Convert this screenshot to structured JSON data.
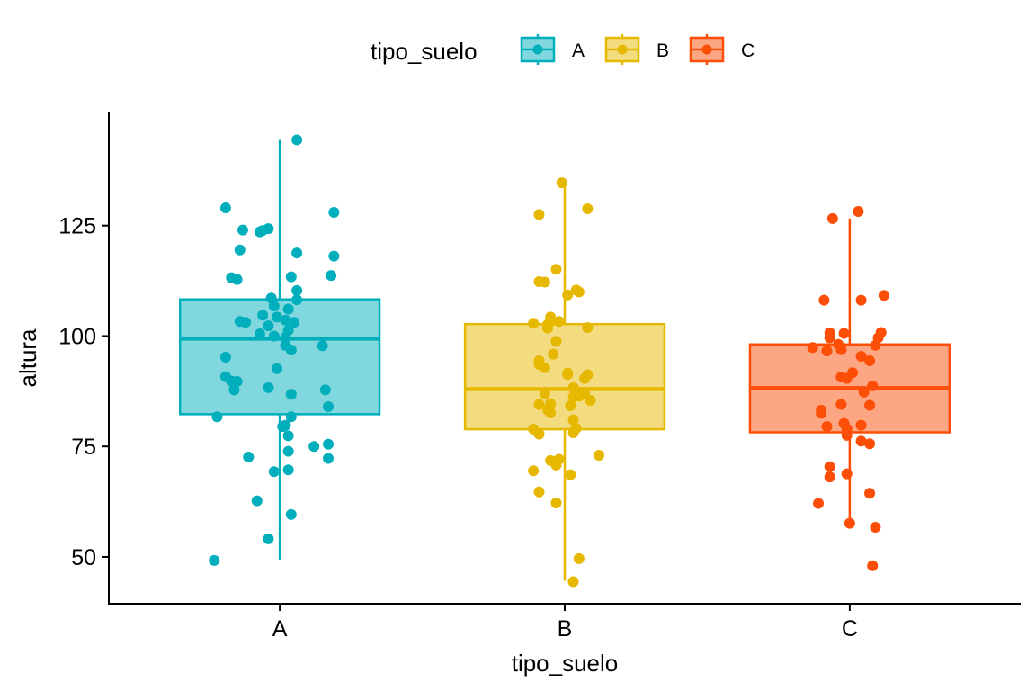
{
  "chart_data": {
    "type": "boxplot",
    "xlabel": "tipo_suelo",
    "ylabel": "altura",
    "ylim": [
      39.4,
      150.6
    ],
    "yticks": [
      50,
      75,
      100,
      125
    ],
    "categories": [
      "A",
      "B",
      "C"
    ],
    "legend": {
      "title": "tipo_suelo",
      "position": "top",
      "entries": [
        {
          "label": "A",
          "color": "#00AFBB"
        },
        {
          "label": "B",
          "color": "#E7B800"
        },
        {
          "label": "C",
          "color": "#FC4E07"
        }
      ]
    },
    "series": [
      {
        "category": "A",
        "color": "#00AFBB",
        "fill": "#80D7DD",
        "box": {
          "whisker_low": 49.4,
          "q1": 82.3,
          "median": 99.4,
          "q3": 108.3,
          "whisker_high": 144.4
        },
        "points": [
          {
            "x": -0.19,
            "y": 129.0
          },
          {
            "x": 0.19,
            "y": 128.0
          },
          {
            "x": -0.13,
            "y": 124.0
          },
          {
            "x": -0.04,
            "y": 124.3
          },
          {
            "x": -0.06,
            "y": 123.9
          },
          {
            "x": -0.07,
            "y": 123.6
          },
          {
            "x": -0.14,
            "y": 119.5
          },
          {
            "x": 0.06,
            "y": 118.8
          },
          {
            "x": 0.19,
            "y": 118.1
          },
          {
            "x": -0.17,
            "y": 113.2
          },
          {
            "x": 0.04,
            "y": 113.4
          },
          {
            "x": 0.18,
            "y": 113.7
          },
          {
            "x": -0.15,
            "y": 112.8
          },
          {
            "x": 0.06,
            "y": 110.3
          },
          {
            "x": -0.03,
            "y": 108.6
          },
          {
            "x": 0.06,
            "y": 108.2
          },
          {
            "x": -0.02,
            "y": 106.8
          },
          {
            "x": 0.03,
            "y": 106.1
          },
          {
            "x": -0.06,
            "y": 104.7
          },
          {
            "x": -0.01,
            "y": 104.3
          },
          {
            "x": 0.02,
            "y": 103.6
          },
          {
            "x": -0.14,
            "y": 103.3
          },
          {
            "x": -0.12,
            "y": 103.1
          },
          {
            "x": 0.05,
            "y": 103.1
          },
          {
            "x": -0.04,
            "y": 102.3
          },
          {
            "x": 0.03,
            "y": 101.3
          },
          {
            "x": -0.07,
            "y": 100.5
          },
          {
            "x": -0.02,
            "y": 100.0
          },
          {
            "x": 0.02,
            "y": 99.7
          },
          {
            "x": 0.02,
            "y": 97.9
          },
          {
            "x": 0.15,
            "y": 97.8
          },
          {
            "x": 0.04,
            "y": 96.8
          },
          {
            "x": -0.19,
            "y": 95.2
          },
          {
            "x": -0.01,
            "y": 92.6
          },
          {
            "x": -0.19,
            "y": 90.8
          },
          {
            "x": -0.17,
            "y": 89.8
          },
          {
            "x": -0.15,
            "y": 89.7
          },
          {
            "x": -0.04,
            "y": 88.3
          },
          {
            "x": -0.16,
            "y": 87.8
          },
          {
            "x": 0.16,
            "y": 87.8
          },
          {
            "x": 0.04,
            "y": 86.8
          },
          {
            "x": 0.17,
            "y": 84.0
          },
          {
            "x": -0.22,
            "y": 81.7
          },
          {
            "x": 0.04,
            "y": 81.7
          },
          {
            "x": 0.02,
            "y": 79.8
          },
          {
            "x": 0.01,
            "y": 79.5
          },
          {
            "x": 0.03,
            "y": 77.4
          },
          {
            "x": 0.17,
            "y": 75.5
          },
          {
            "x": 0.12,
            "y": 75.0
          },
          {
            "x": 0.03,
            "y": 73.9
          },
          {
            "x": -0.11,
            "y": 72.6
          },
          {
            "x": 0.17,
            "y": 72.3
          },
          {
            "x": 0.03,
            "y": 69.7
          },
          {
            "x": -0.02,
            "y": 69.3
          },
          {
            "x": -0.08,
            "y": 62.7
          },
          {
            "x": 0.04,
            "y": 59.6
          },
          {
            "x": -0.04,
            "y": 54.1
          },
          {
            "x": -0.23,
            "y": 49.2
          },
          {
            "x": 0.06,
            "y": 144.4
          }
        ]
      },
      {
        "category": "B",
        "color": "#E7B800",
        "fill": "#F3DB7F",
        "box": {
          "whisker_low": 44.6,
          "q1": 78.9,
          "median": 88.0,
          "q3": 102.7,
          "whisker_high": 134.4
        },
        "points": [
          {
            "x": -0.01,
            "y": 134.7
          },
          {
            "x": 0.08,
            "y": 128.8
          },
          {
            "x": -0.09,
            "y": 127.5
          },
          {
            "x": -0.03,
            "y": 115.1
          },
          {
            "x": -0.09,
            "y": 112.3
          },
          {
            "x": -0.07,
            "y": 112.2
          },
          {
            "x": 0.04,
            "y": 110.4
          },
          {
            "x": 0.05,
            "y": 110.0
          },
          {
            "x": 0.01,
            "y": 109.3
          },
          {
            "x": -0.05,
            "y": 104.3
          },
          {
            "x": -0.05,
            "y": 103.3
          },
          {
            "x": -0.02,
            "y": 103.3
          },
          {
            "x": -0.11,
            "y": 102.9
          },
          {
            "x": -0.06,
            "y": 102.6
          },
          {
            "x": 0.08,
            "y": 101.9
          },
          {
            "x": -0.06,
            "y": 101.8
          },
          {
            "x": -0.03,
            "y": 98.8
          },
          {
            "x": -0.04,
            "y": 95.9
          },
          {
            "x": -0.09,
            "y": 94.4
          },
          {
            "x": -0.09,
            "y": 93.6
          },
          {
            "x": -0.07,
            "y": 92.8
          },
          {
            "x": 0.01,
            "y": 91.6
          },
          {
            "x": 0.01,
            "y": 91.3
          },
          {
            "x": 0.08,
            "y": 91.2
          },
          {
            "x": 0.07,
            "y": 90.4
          },
          {
            "x": 0.03,
            "y": 88.3
          },
          {
            "x": 0.04,
            "y": 87.5
          },
          {
            "x": 0.07,
            "y": 87.0
          },
          {
            "x": -0.07,
            "y": 87.0
          },
          {
            "x": 0.04,
            "y": 86.6
          },
          {
            "x": 0.03,
            "y": 86.2
          },
          {
            "x": 0.05,
            "y": 86.4
          },
          {
            "x": 0.09,
            "y": 85.4
          },
          {
            "x": -0.09,
            "y": 84.5
          },
          {
            "x": -0.05,
            "y": 84.7
          },
          {
            "x": 0.02,
            "y": 84.2
          },
          {
            "x": -0.06,
            "y": 83.3
          },
          {
            "x": -0.05,
            "y": 82.6
          },
          {
            "x": 0.03,
            "y": 81.0
          },
          {
            "x": 0.04,
            "y": 79.1
          },
          {
            "x": -0.11,
            "y": 78.9
          },
          {
            "x": 0.03,
            "y": 78.1
          },
          {
            "x": -0.09,
            "y": 77.8
          },
          {
            "x": 0.12,
            "y": 73.0
          },
          {
            "x": -0.02,
            "y": 72.1
          },
          {
            "x": -0.05,
            "y": 71.8
          },
          {
            "x": -0.03,
            "y": 70.8
          },
          {
            "x": -0.11,
            "y": 69.5
          },
          {
            "x": 0.02,
            "y": 68.6
          },
          {
            "x": -0.09,
            "y": 64.7
          },
          {
            "x": -0.03,
            "y": 62.2
          },
          {
            "x": 0.05,
            "y": 49.6
          },
          {
            "x": 0.03,
            "y": 44.4
          }
        ]
      },
      {
        "category": "C",
        "color": "#FC4E07",
        "fill": "#FDA683",
        "box": {
          "whisker_low": 57.7,
          "q1": 78.2,
          "median": 88.2,
          "q3": 98.1,
          "whisker_high": 126.6
        },
        "points": [
          {
            "x": 0.03,
            "y": 128.2
          },
          {
            "x": -0.06,
            "y": 126.6
          },
          {
            "x": 0.12,
            "y": 109.2
          },
          {
            "x": -0.09,
            "y": 108.1
          },
          {
            "x": 0.04,
            "y": 108.1
          },
          {
            "x": -0.07,
            "y": 100.7
          },
          {
            "x": -0.02,
            "y": 100.6
          },
          {
            "x": 0.11,
            "y": 100.8
          },
          {
            "x": -0.07,
            "y": 99.6
          },
          {
            "x": 0.1,
            "y": 99.6
          },
          {
            "x": -0.04,
            "y": 98.1
          },
          {
            "x": 0.09,
            "y": 97.9
          },
          {
            "x": -0.13,
            "y": 97.4
          },
          {
            "x": -0.03,
            "y": 96.9
          },
          {
            "x": -0.08,
            "y": 96.6
          },
          {
            "x": 0.04,
            "y": 95.4
          },
          {
            "x": 0.07,
            "y": 94.4
          },
          {
            "x": 0.01,
            "y": 91.7
          },
          {
            "x": -0.03,
            "y": 90.7
          },
          {
            "x": -0.01,
            "y": 90.4
          },
          {
            "x": 0.08,
            "y": 88.7
          },
          {
            "x": 0.05,
            "y": 87.3
          },
          {
            "x": -0.03,
            "y": 84.5
          },
          {
            "x": 0.07,
            "y": 84.3
          },
          {
            "x": -0.1,
            "y": 83.2
          },
          {
            "x": -0.1,
            "y": 82.5
          },
          {
            "x": -0.02,
            "y": 80.2
          },
          {
            "x": 0.04,
            "y": 79.8
          },
          {
            "x": -0.08,
            "y": 79.5
          },
          {
            "x": -0.01,
            "y": 79.0
          },
          {
            "x": -0.01,
            "y": 77.5
          },
          {
            "x": 0.04,
            "y": 76.2
          },
          {
            "x": 0.07,
            "y": 75.6
          },
          {
            "x": -0.07,
            "y": 70.4
          },
          {
            "x": -0.07,
            "y": 68.1
          },
          {
            "x": -0.01,
            "y": 68.8
          },
          {
            "x": 0.07,
            "y": 64.4
          },
          {
            "x": -0.11,
            "y": 62.1
          },
          {
            "x": 0.0,
            "y": 57.6
          },
          {
            "x": 0.09,
            "y": 56.7
          },
          {
            "x": 0.08,
            "y": 48.0
          }
        ]
      }
    ]
  }
}
